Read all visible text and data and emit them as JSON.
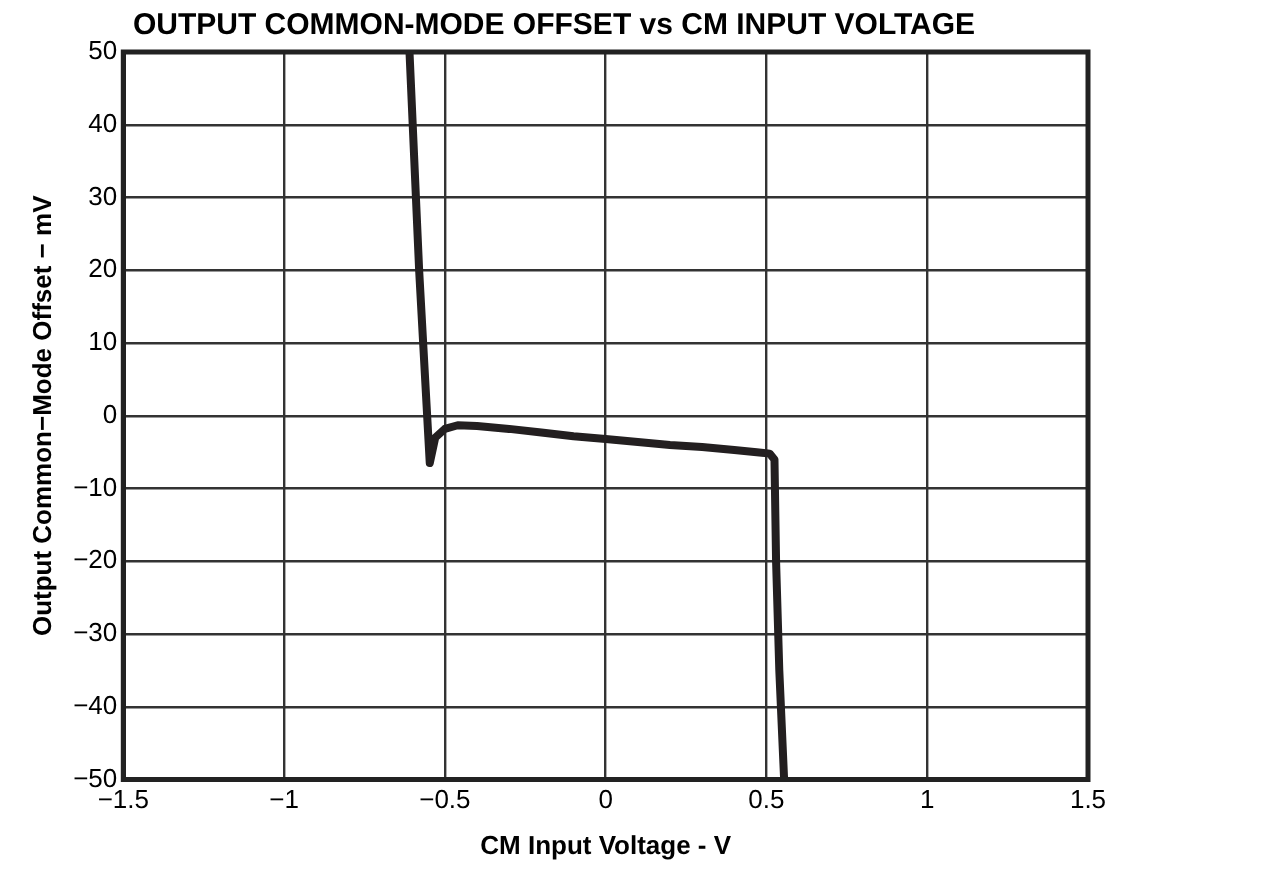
{
  "chart_data": {
    "type": "line",
    "title": "OUTPUT COMMON-MODE OFFSET vs CM INPUT VOLTAGE",
    "xlabel": "CM Input Voltage - V",
    "ylabel": "Output Common−Mode Offset − mV",
    "x": [
      -0.61,
      -0.58,
      -0.547,
      -0.53,
      -0.5,
      -0.46,
      -0.4,
      -0.3,
      -0.2,
      -0.1,
      0,
      0.1,
      0.2,
      0.3,
      0.4,
      0.47,
      0.51,
      0.525,
      0.53,
      0.54,
      0.555
    ],
    "series": [
      {
        "color": "#231f20",
        "values": [
          50,
          20,
          -6.5,
          -3,
          -1.8,
          -1.3,
          -1.4,
          -1.8,
          -2.3,
          -2.8,
          -3.2,
          -3.6,
          -4,
          -4.3,
          -4.7,
          -5,
          -5.2,
          -6,
          -20,
          -35,
          -50
        ]
      }
    ],
    "xlim": [
      -1.5,
      1.5
    ],
    "ylim": [
      -50,
      50
    ],
    "xticks": [
      {
        "value": -1.5,
        "label": "−1.5"
      },
      {
        "value": -1,
        "label": "−1"
      },
      {
        "value": -0.5,
        "label": "−0.5"
      },
      0,
      0.5,
      1,
      1.5
    ],
    "yticks": [
      {
        "value": -50,
        "label": "−50"
      },
      {
        "value": -40,
        "label": "−40"
      },
      {
        "value": -30,
        "label": "−30"
      },
      {
        "value": -20,
        "label": "−20"
      },
      {
        "value": -10,
        "label": "−10"
      },
      0,
      10,
      20,
      30,
      40,
      50
    ],
    "grid": true,
    "legend": false,
    "marker": "none",
    "line_style": "solid"
  }
}
